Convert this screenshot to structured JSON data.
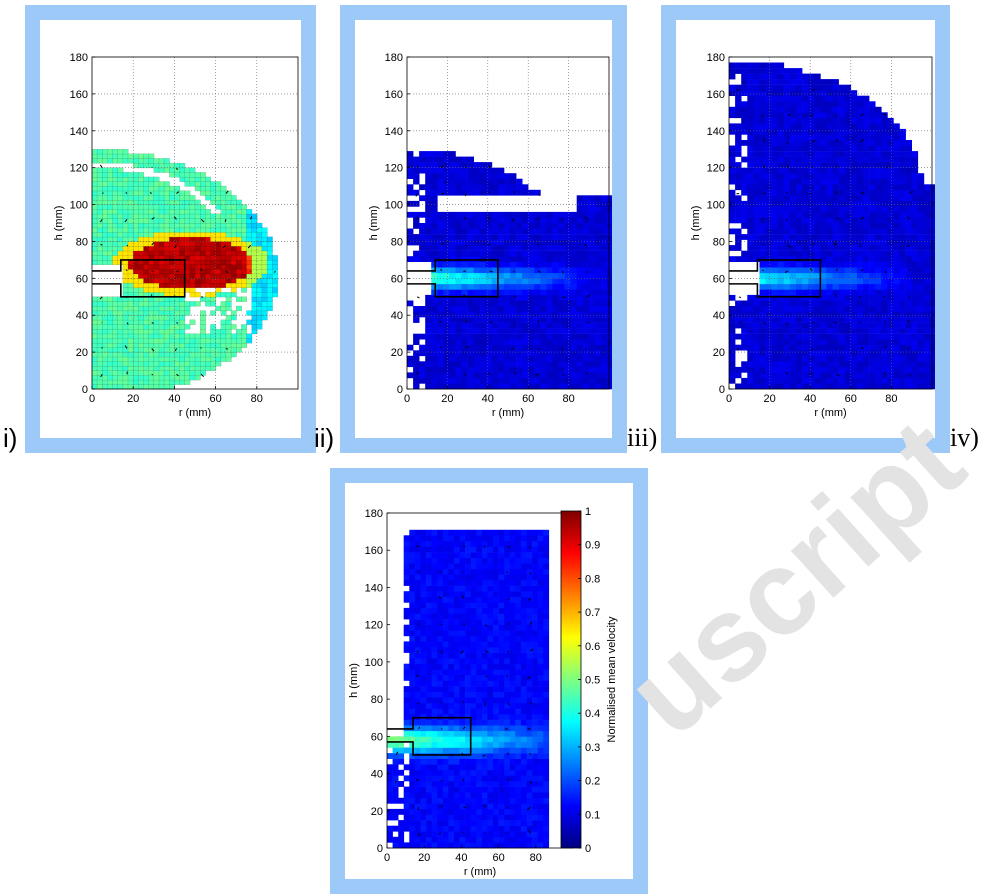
{
  "figure": {
    "watermark_text": "uscript",
    "panel_labels": [
      "i)",
      "ii)",
      "iii)",
      "iv)"
    ]
  },
  "colors": {
    "frame": "#9cc9f7",
    "colormap": [
      "#00007f",
      "#0000ff",
      "#007fff",
      "#00ffff",
      "#7fff7f",
      "#ffff00",
      "#ff7f00",
      "#ff0000",
      "#7f0000"
    ]
  },
  "chart_data": [
    {
      "type": "heatmap",
      "panel": "i)",
      "xlabel": "r (mm)",
      "ylabel": "h (mm)",
      "xlim": [
        0,
        100
      ],
      "ylim": [
        0,
        180
      ],
      "xticks": [
        0,
        20,
        40,
        60,
        80
      ],
      "yticks": [
        0,
        20,
        40,
        60,
        80,
        100,
        120,
        140,
        160,
        180
      ],
      "grid": true,
      "colorbar": false,
      "note_visible": "field covers roughly h 0–130 mm; high velocity (red) region near r 30–70, h 55–85"
    },
    {
      "type": "heatmap",
      "panel": "ii)",
      "xlabel": "r (mm)",
      "ylabel": "h (mm)",
      "xlim": [
        0,
        100
      ],
      "ylim": [
        0,
        180
      ],
      "xticks": [
        0,
        20,
        40,
        60,
        80
      ],
      "yticks": [
        0,
        20,
        40,
        60,
        80,
        100,
        120,
        140,
        160,
        180
      ],
      "grid": true,
      "colorbar": false
    },
    {
      "type": "heatmap",
      "panel": "iii)",
      "xlabel": "r (mm)",
      "ylabel": "h (mm)",
      "xlim": [
        0,
        100
      ],
      "ylim": [
        0,
        180
      ],
      "xticks": [
        0,
        20,
        40,
        60,
        80
      ],
      "yticks": [
        0,
        20,
        40,
        60,
        80,
        100,
        120,
        140,
        160,
        180
      ],
      "grid": true,
      "colorbar": false
    },
    {
      "type": "heatmap",
      "panel": "iv)",
      "xlabel": "r (mm)",
      "ylabel": "h (mm)",
      "xlim": [
        0,
        100
      ],
      "ylim": [
        0,
        180
      ],
      "xticks": [
        0,
        20,
        40,
        60,
        80
      ],
      "yticks": [
        0,
        20,
        40,
        60,
        80,
        100,
        120,
        140,
        160,
        180
      ],
      "grid": false,
      "colorbar": true,
      "colorbar_label": "Normalised mean velocity",
      "colorbar_ticks": [
        "0",
        "0.1",
        "0.2",
        "0.3",
        "0.4",
        "0.5",
        "0.6",
        "0.7",
        "0.8",
        "0.9",
        "1"
      ],
      "colorbar_range": [
        0,
        1
      ]
    }
  ]
}
